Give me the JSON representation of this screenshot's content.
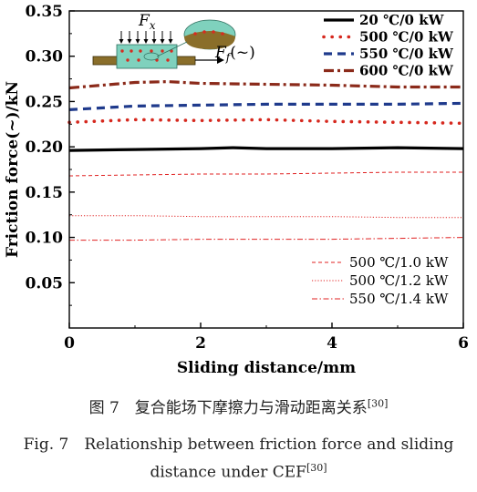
{
  "chart_data": {
    "type": "line",
    "xlabel": "Sliding distance/mm",
    "ylabel": "Friction force(~)/kN",
    "xlim": [
      0,
      6
    ],
    "ylim": [
      0,
      0.35
    ],
    "xticks": [
      "0",
      "2",
      "4",
      "6"
    ],
    "yticks": [
      "0.05",
      "0.10",
      "0.15",
      "0.20",
      "0.25",
      "0.30",
      "0.35"
    ],
    "grid": false,
    "legend_top": "top-right",
    "legend_bottom": "bottom-right",
    "series": [
      {
        "name": "20 ℃/0 kW",
        "style": "solid",
        "legend": "top",
        "color": "#000000",
        "x": [
          0,
          1,
          2,
          2.5,
          3,
          4,
          5,
          6
        ],
        "y": [
          0.196,
          0.197,
          0.198,
          0.199,
          0.198,
          0.198,
          0.199,
          0.198
        ]
      },
      {
        "name": "500 ℃/0 kW",
        "style": "dotted",
        "legend": "top",
        "color": "#d6281e",
        "x": [
          0,
          1,
          2,
          3,
          4,
          5,
          6
        ],
        "y": [
          0.227,
          0.23,
          0.229,
          0.23,
          0.228,
          0.227,
          0.226
        ]
      },
      {
        "name": "550 ℃/0 kW",
        "style": "dashed",
        "legend": "top",
        "color": "#1f3a8c",
        "x": [
          0,
          1,
          2,
          3,
          4,
          5,
          6
        ],
        "y": [
          0.241,
          0.245,
          0.246,
          0.247,
          0.247,
          0.247,
          0.248
        ]
      },
      {
        "name": "600 ℃/0 kW",
        "style": "dashdot",
        "legend": "top",
        "color": "#8b2a1a",
        "x": [
          0,
          1,
          1.5,
          2,
          3,
          4,
          5,
          6
        ],
        "y": [
          0.265,
          0.271,
          0.272,
          0.27,
          0.269,
          0.268,
          0.266,
          0.266
        ]
      },
      {
        "name": "500 ℃/1.0 kW",
        "style": "thin-dashed",
        "legend": "bottom",
        "color": "#e02020",
        "x": [
          0,
          1,
          2,
          3,
          4,
          5,
          6
        ],
        "y": [
          0.168,
          0.169,
          0.17,
          0.17,
          0.171,
          0.172,
          0.172
        ]
      },
      {
        "name": "500 ℃/1.2 kW",
        "style": "thin-dotted",
        "legend": "bottom",
        "color": "#e02020",
        "x": [
          0,
          1,
          2,
          3,
          4,
          5,
          6
        ],
        "y": [
          0.124,
          0.124,
          0.123,
          0.123,
          0.123,
          0.122,
          0.122
        ]
      },
      {
        "name": "550 ℃/1.4 kW",
        "style": "thin-dashdot",
        "legend": "bottom",
        "color": "#e02020",
        "x": [
          0,
          1,
          2,
          3,
          4,
          5,
          6
        ],
        "y": [
          0.097,
          0.097,
          0.098,
          0.098,
          0.098,
          0.099,
          0.1
        ]
      }
    ],
    "inset": {
      "force_label_main": "F",
      "force_label_sub": "x",
      "friction_label_main": "F",
      "friction_label_sub": "f",
      "friction_label_tail": "(~)"
    }
  },
  "caption": {
    "cn": "图 7　复合能场下摩擦力与滑动距离关系",
    "cn_ref": "[30]",
    "en_line1": "Fig. 7　Relationship between friction force and sliding",
    "en_line2": "distance under CEF",
    "en_ref": "[30]"
  }
}
